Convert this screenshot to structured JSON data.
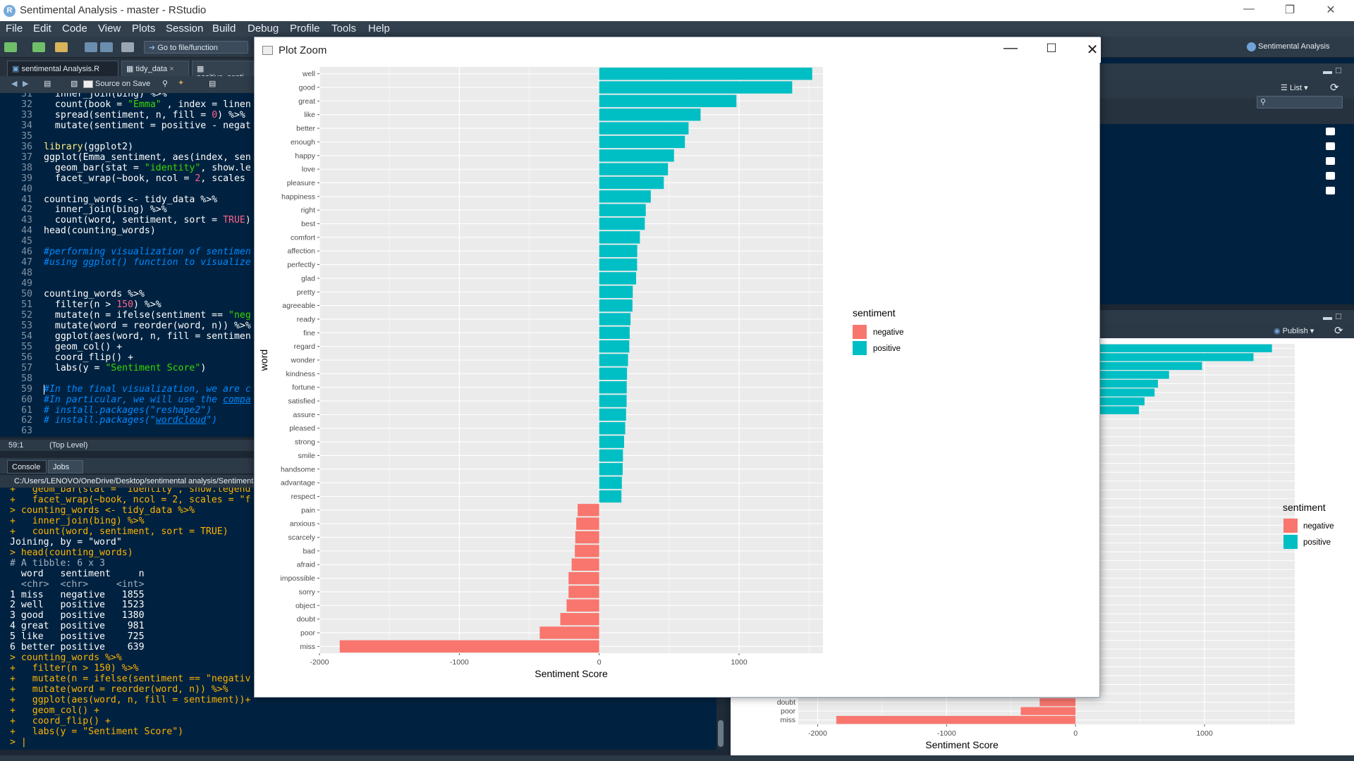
{
  "window": {
    "title": "Sentimental Analysis - master - RStudio",
    "logo": "R"
  },
  "menu": [
    "File",
    "Edit",
    "Code",
    "View",
    "Plots",
    "Session",
    "Build",
    "Debug",
    "Profile",
    "Tools",
    "Help"
  ],
  "toolbar": {
    "goto_label": "Go to file/function",
    "project_label": "Sentimental Analysis"
  },
  "editor": {
    "tabs": [
      "sentimental Analysis.R",
      "tidy_data",
      "positive_senti"
    ],
    "source_on_save": "Source on Save",
    "lines": [
      {
        "n": "31",
        "html": "  inner_join(bing) %>%"
      },
      {
        "n": "32",
        "html": "  count(book = <span class='c-str'>\"Emma\"</span> , index = linen"
      },
      {
        "n": "33",
        "html": "  spread(sentiment, n, fill = <span class='c-num'>0</span>) %>%"
      },
      {
        "n": "34",
        "html": "  mutate(sentiment = positive - negat"
      },
      {
        "n": "35",
        "html": ""
      },
      {
        "n": "36",
        "html": "<span class='c-fn'>library</span>(ggplot2)"
      },
      {
        "n": "37",
        "html": "ggplot(Emma_sentiment, aes(index, sen"
      },
      {
        "n": "38",
        "html": "  geom_bar(stat = <span class='c-str'>\"identity\"</span>, show.le"
      },
      {
        "n": "39",
        "html": "  facet_wrap(~book, ncol = <span class='c-num'>2</span>, scales"
      },
      {
        "n": "40",
        "html": ""
      },
      {
        "n": "41",
        "html": "counting_words &lt;- tidy_data %>%"
      },
      {
        "n": "42",
        "html": "  inner_join(bing) %>%"
      },
      {
        "n": "43",
        "html": "  count(word, sentiment, sort = <span class='c-num'>TRUE</span>)"
      },
      {
        "n": "44",
        "html": "head(counting_words)"
      },
      {
        "n": "45",
        "html": ""
      },
      {
        "n": "46",
        "html": "<span class='c-com'>#performing visualization of sentimen</span>"
      },
      {
        "n": "47",
        "html": "<span class='c-com'>#using ggplot() function to visualize</span>"
      },
      {
        "n": "48",
        "html": ""
      },
      {
        "n": "49",
        "html": ""
      },
      {
        "n": "50",
        "html": "counting_words %>%"
      },
      {
        "n": "51",
        "html": "  filter(n > <span class='c-num'>150</span>) %>%"
      },
      {
        "n": "52",
        "html": "  mutate(n = ifelse(sentiment == <span class='c-str'>\"neg</span>"
      },
      {
        "n": "53",
        "html": "  mutate(word = reorder(word, n)) %>%"
      },
      {
        "n": "54",
        "html": "  ggplot(aes(word, n, fill = sentimen"
      },
      {
        "n": "55",
        "html": "  geom_col() +"
      },
      {
        "n": "56",
        "html": "  coord_flip() +"
      },
      {
        "n": "57",
        "html": "  labs(y = <span class='c-str'>\"Sentiment Score\"</span>)"
      },
      {
        "n": "58",
        "html": ""
      },
      {
        "n": "59",
        "html": "<span class='c-com'>#In the final visualization, we are c</span>"
      },
      {
        "n": "60",
        "html": "<span class='c-com'>#In particular, we will use the <u>compa</u></span>"
      },
      {
        "n": "61",
        "html": "<span class='c-com'># install.packages(\"reshape2\")</span>"
      },
      {
        "n": "62",
        "html": "<span class='c-com'># install.packages(\"<u>wordcloud</u>\")</span>"
      },
      {
        "n": "63",
        "html": ""
      }
    ],
    "status_pos": "59:1",
    "status_scope": "(Top Level)"
  },
  "console": {
    "tabs": [
      "Console",
      "Jobs"
    ],
    "path": "C:/Users/LENOVO/OneDrive/Desktop/sentimental analysis/Sentimenta",
    "lines": [
      {
        "t": "cmd",
        "s": "+   geom_bar(stat = \"identity\", show.legend"
      },
      {
        "t": "cmd",
        "s": "+   facet_wrap(~book, ncol = 2, scales = \"f"
      },
      {
        "t": "cmd",
        "s": "> counting_words <- tidy_data %>%"
      },
      {
        "t": "cmd",
        "s": "+   inner_join(bing) %>%"
      },
      {
        "t": "cmd",
        "s": "+   count(word, sentiment, sort = TRUE)"
      },
      {
        "t": "out",
        "s": "Joining, by = \"word\""
      },
      {
        "t": "cmd",
        "s": "> head(counting_words)"
      },
      {
        "t": "dim",
        "s": "# A tibble: 6 x 3"
      },
      {
        "t": "out",
        "s": "  word   sentiment     n"
      },
      {
        "t": "dim",
        "s": "  <chr>  <chr>     <int>"
      },
      {
        "t": "out",
        "s": "1 miss   negative   1855"
      },
      {
        "t": "out",
        "s": "2 well   positive   1523"
      },
      {
        "t": "out",
        "s": "3 good   positive   1380"
      },
      {
        "t": "out",
        "s": "4 great  positive    981"
      },
      {
        "t": "out",
        "s": "5 like   positive    725"
      },
      {
        "t": "out",
        "s": "6 better positive    639"
      },
      {
        "t": "cmd",
        "s": "> counting_words %>%"
      },
      {
        "t": "cmd",
        "s": "+   filter(n > 150) %>%"
      },
      {
        "t": "cmd",
        "s": "+   mutate(n = ifelse(sentiment == \"negativ"
      },
      {
        "t": "cmd",
        "s": "+   mutate(word = reorder(word, n)) %>%"
      },
      {
        "t": "cmd",
        "s": "+   ggplot(aes(word, n, fill = sentiment))+"
      },
      {
        "t": "cmd",
        "s": "+   geom_col() +"
      },
      {
        "t": "cmd",
        "s": "+   coord_flip() +"
      },
      {
        "t": "cmd",
        "s": "+   labs(y = \"Sentiment Score\")"
      },
      {
        "t": "cmd",
        "s": "> |"
      }
    ]
  },
  "right_panel": {
    "list_label": "List",
    "publish_label": "Publish"
  },
  "plot_zoom": {
    "title": "Plot Zoom"
  },
  "colors": {
    "negative": "#F8766D",
    "positive": "#00BFC4",
    "panel": "#EBEBEB"
  },
  "chart_data": [
    {
      "type": "bar",
      "orientation": "horizontal",
      "title": "",
      "xlabel": "Sentiment Score",
      "ylabel": "word",
      "xlim": [
        -2000,
        1600
      ],
      "ticks": [
        -2000,
        -1000,
        0,
        1000
      ],
      "tick_labels": [
        "-2000",
        "-1000",
        "0",
        "1000"
      ],
      "legend": {
        "title": "sentiment",
        "entries": [
          "negative",
          "positive"
        ],
        "position": "right"
      },
      "categories": [
        "well",
        "good",
        "great",
        "like",
        "better",
        "enough",
        "happy",
        "love",
        "pleasure",
        "happiness",
        "right",
        "best",
        "comfort",
        "affection",
        "perfectly",
        "glad",
        "pretty",
        "agreeable",
        "ready",
        "fine",
        "regard",
        "wonder",
        "kindness",
        "fortune",
        "satisfied",
        "assure",
        "pleased",
        "strong",
        "smile",
        "handsome",
        "advantage",
        "respect",
        "pain",
        "anxious",
        "scarcely",
        "bad",
        "afraid",
        "impossible",
        "sorry",
        "object",
        "doubt",
        "poor",
        "miss"
      ],
      "values": [
        1523,
        1380,
        981,
        725,
        639,
        613,
        535,
        492,
        462,
        369,
        333,
        326,
        291,
        272,
        271,
        264,
        240,
        238,
        224,
        218,
        215,
        206,
        199,
        197,
        196,
        192,
        186,
        178,
        170,
        168,
        162,
        159,
        -154,
        -164,
        -171,
        -174,
        -197,
        -219,
        -219,
        -233,
        -278,
        -425,
        -1855
      ],
      "sentiment": [
        "positive",
        "positive",
        "positive",
        "positive",
        "positive",
        "positive",
        "positive",
        "positive",
        "positive",
        "positive",
        "positive",
        "positive",
        "positive",
        "positive",
        "positive",
        "positive",
        "positive",
        "positive",
        "positive",
        "positive",
        "positive",
        "positive",
        "positive",
        "positive",
        "positive",
        "positive",
        "positive",
        "positive",
        "positive",
        "positive",
        "positive",
        "positive",
        "negative",
        "negative",
        "negative",
        "negative",
        "negative",
        "negative",
        "negative",
        "negative",
        "negative",
        "negative",
        "negative"
      ]
    },
    {
      "type": "bar",
      "orientation": "horizontal",
      "title": "",
      "xlabel": "Sentiment Score",
      "ylabel": "",
      "xlim": [
        -2150,
        1700
      ],
      "ticks": [
        -2000,
        -1000,
        0,
        1000
      ],
      "tick_labels": [
        "-2000",
        "-1000",
        "0",
        "1000"
      ],
      "legend": {
        "title": "sentiment",
        "entries": [
          "negative",
          "positive"
        ],
        "position": "right"
      },
      "categories_visible": [
        "doubt",
        "poor",
        "miss"
      ],
      "top_values": [
        1523,
        1380,
        981,
        725,
        639,
        613,
        535,
        492
      ],
      "bottom_values": [
        -278,
        -425,
        -1855
      ]
    }
  ]
}
